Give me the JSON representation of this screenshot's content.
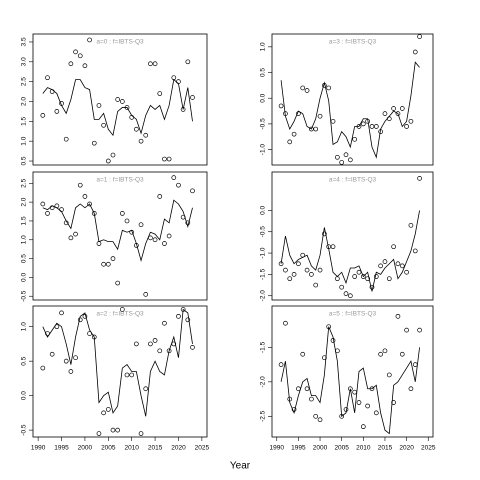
{
  "xlabel": "Year",
  "chart_data": [
    {
      "type": "line",
      "title": "a=0 : f=IBTS-Q3",
      "x": [
        1991,
        1992,
        1993,
        1994,
        1995,
        1996,
        1997,
        1998,
        1999,
        2000,
        2001,
        2002,
        2003,
        2004,
        2005,
        2006,
        2007,
        2008,
        2009,
        2010,
        2011,
        2012,
        2013,
        2014,
        2015,
        2016,
        2017,
        2018,
        2019,
        2020,
        2021,
        2022,
        2023
      ],
      "series": [
        {
          "style": "points",
          "color": "#000000",
          "values": [
            1.65,
            2.6,
            2.25,
            1.75,
            1.95,
            1.05,
            2.95,
            3.25,
            3.15,
            2.9,
            3.55,
            0.95,
            1.9,
            1.4,
            0.5,
            0.65,
            2.05,
            2.0,
            1.85,
            1.6,
            1.3,
            1.0,
            1.15,
            2.95,
            2.95,
            2.2,
            0.55,
            0.55,
            2.6,
            2.5,
            1.8,
            3.0,
            2.1
          ]
        },
        {
          "style": "line",
          "color": "#000000",
          "values": [
            2.2,
            2.35,
            2.3,
            2.2,
            1.9,
            1.7,
            2.05,
            2.55,
            2.55,
            2.35,
            2.3,
            1.55,
            1.55,
            1.7,
            1.3,
            1.15,
            1.75,
            1.85,
            1.85,
            1.65,
            1.55,
            1.2,
            1.65,
            1.9,
            1.8,
            1.9,
            1.55,
            1.9,
            2.55,
            2.45,
            1.8,
            2.35,
            1.5
          ]
        }
      ],
      "xlim": [
        1988.9,
        2026.1
      ],
      "ylim": [
        0.4,
        3.7
      ],
      "yticks": [
        {
          "value": 0.5,
          "label": "0.5"
        },
        {
          "value": 1,
          "label": "1.0"
        },
        {
          "value": 1.5,
          "label": "1.5"
        },
        {
          "value": 2,
          "label": "2.0"
        },
        {
          "value": 2.5,
          "label": "2.5"
        },
        {
          "value": 3,
          "label": "3.0"
        },
        {
          "value": 3.5,
          "label": "3.5"
        }
      ]
    },
    {
      "type": "line",
      "title": "a=1 : f=IBTS-Q3",
      "x": [
        1991,
        1992,
        1993,
        1994,
        1995,
        1996,
        1997,
        1998,
        1999,
        2000,
        2001,
        2002,
        2003,
        2004,
        2005,
        2006,
        2007,
        2008,
        2009,
        2010,
        2011,
        2012,
        2013,
        2014,
        2015,
        2016,
        2017,
        2018,
        2019,
        2020,
        2021,
        2022,
        2023
      ],
      "series": [
        {
          "style": "points",
          "color": "#000000",
          "values": [
            1.95,
            1.7,
            1.85,
            1.9,
            1.8,
            1.45,
            1.05,
            1.15,
            2.45,
            2.15,
            1.95,
            1.7,
            0.9,
            0.35,
            0.35,
            0.5,
            -0.15,
            1.7,
            1.5,
            1.2,
            0.85,
            1.4,
            -0.45,
            1.05,
            1.0,
            2.15,
            0.9,
            1.1,
            2.65,
            2.45,
            1.6,
            1.45,
            2.3
          ]
        },
        {
          "style": "line",
          "color": "#000000",
          "values": [
            1.85,
            1.8,
            1.9,
            1.85,
            1.75,
            1.5,
            1.3,
            1.85,
            1.95,
            1.85,
            1.95,
            1.7,
            0.95,
            1.0,
            0.95,
            0.95,
            0.75,
            1.25,
            1.2,
            1.25,
            0.9,
            0.45,
            0.9,
            1.2,
            1.15,
            1.0,
            1.55,
            1.45,
            2.05,
            1.95,
            1.75,
            1.35,
            1.85
          ]
        }
      ],
      "xlim": [
        1988.9,
        2026.1
      ],
      "ylim": [
        -0.6,
        2.8
      ],
      "yticks": [
        -0.5,
        {
          "value": 0,
          "label": "0.0"
        },
        {
          "value": 0.5,
          "label": "0.5"
        },
        {
          "value": 1,
          "label": "1.0"
        },
        {
          "value": 1.5,
          "label": "1.5"
        },
        {
          "value": 2,
          "label": "2.0"
        },
        {
          "value": 2.5,
          "label": "2.5"
        }
      ]
    },
    {
      "type": "line",
      "title": "a=2 : f=IBTS-Q3",
      "x": [
        1991,
        1992,
        1993,
        1994,
        1995,
        1996,
        1997,
        1998,
        1999,
        2000,
        2001,
        2002,
        2003,
        2004,
        2005,
        2006,
        2007,
        2008,
        2009,
        2010,
        2011,
        2012,
        2013,
        2014,
        2015,
        2016,
        2017,
        2018,
        2019,
        2020,
        2021,
        2022,
        2023
      ],
      "series": [
        {
          "style": "points",
          "color": "#000000",
          "values": [
            0.4,
            0.9,
            0.6,
            1.0,
            1.2,
            0.5,
            0.35,
            0.55,
            1.1,
            1.15,
            0.9,
            0.85,
            -0.55,
            -0.25,
            -0.2,
            -0.5,
            -0.5,
            1.25,
            0.3,
            0.3,
            0.75,
            -0.55,
            0.1,
            0.75,
            0.8,
            0.65,
            1.05,
            0.65,
            0.75,
            1.15,
            1.25,
            1.1,
            0.7
          ]
        },
        {
          "style": "line",
          "color": "#000000",
          "values": [
            1.0,
            0.85,
            0.95,
            1.05,
            1.0,
            0.75,
            0.45,
            0.85,
            1.15,
            1.2,
            0.95,
            0.85,
            -0.1,
            0.0,
            0.05,
            -0.25,
            -0.15,
            0.4,
            0.45,
            0.35,
            0.35,
            0.0,
            -0.3,
            0.35,
            0.5,
            0.35,
            0.3,
            0.65,
            0.85,
            0.55,
            1.25,
            1.2,
            0.75
          ]
        }
      ],
      "xlim": [
        1988.9,
        2026.1
      ],
      "ylim": [
        -0.6,
        1.3
      ],
      "yticks": [
        -0.5,
        {
          "value": 0,
          "label": "0.0"
        },
        {
          "value": 0.5,
          "label": "0.5"
        },
        {
          "value": 1,
          "label": "1.0"
        }
      ],
      "xticks": [
        1990,
        1995,
        2000,
        2005,
        2010,
        2015,
        2020,
        2025
      ]
    },
    {
      "type": "line",
      "title": "a=3 : f=IBTS-Q3",
      "x": [
        1991,
        1992,
        1993,
        1994,
        1995,
        1996,
        1997,
        1998,
        1999,
        2000,
        2001,
        2002,
        2003,
        2004,
        2005,
        2006,
        2007,
        2008,
        2009,
        2010,
        2011,
        2012,
        2013,
        2014,
        2015,
        2016,
        2017,
        2018,
        2019,
        2020,
        2021,
        2022,
        2023
      ],
      "series": [
        {
          "style": "points",
          "color": "#000000",
          "values": [
            -0.15,
            -0.3,
            -0.85,
            -0.7,
            -0.3,
            0.2,
            0.15,
            -0.6,
            -0.6,
            -0.35,
            0.25,
            0.2,
            -0.45,
            -1.15,
            -1.25,
            -1.1,
            -1.2,
            -0.8,
            -0.55,
            -0.5,
            -0.45,
            -0.55,
            -0.55,
            -0.65,
            -0.3,
            -0.4,
            -0.2,
            -0.3,
            -0.2,
            -0.55,
            -0.45,
            0.9,
            1.2
          ]
        },
        {
          "style": "line",
          "color": "#000000",
          "values": [
            0.35,
            -0.35,
            -0.6,
            -0.45,
            -0.25,
            -0.3,
            -0.55,
            -0.6,
            -0.4,
            0.0,
            0.3,
            -0.05,
            -0.9,
            -0.85,
            -0.65,
            -0.75,
            -0.95,
            -0.55,
            -0.55,
            -0.4,
            -0.4,
            -0.95,
            -1.15,
            -0.6,
            -0.45,
            -0.35,
            -0.25,
            -0.3,
            -0.55,
            -0.45,
            0.05,
            0.7,
            0.6
          ]
        }
      ],
      "xlim": [
        1988.9,
        2026.1
      ],
      "ylim": [
        -1.3,
        1.25
      ],
      "yticks": [
        {
          "value": -1,
          "label": "-1.0"
        },
        -0.5,
        {
          "value": 0,
          "label": "0.0"
        },
        {
          "value": 0.5,
          "label": "0.5"
        },
        {
          "value": 1,
          "label": "1.0"
        }
      ]
    },
    {
      "type": "line",
      "title": "a=4 : f=IBTS-Q3",
      "x": [
        1991,
        1992,
        1993,
        1994,
        1995,
        1996,
        1997,
        1998,
        1999,
        2000,
        2001,
        2002,
        2003,
        2004,
        2005,
        2006,
        2007,
        2008,
        2009,
        2010,
        2011,
        2012,
        2013,
        2014,
        2015,
        2016,
        2017,
        2018,
        2019,
        2020,
        2021,
        2022,
        2023
      ],
      "series": [
        {
          "style": "points",
          "color": "#000000",
          "values": [
            -1.25,
            -1.4,
            -1.6,
            -1.5,
            -1.25,
            -1.05,
            -1.4,
            -1.5,
            -1.75,
            -1.4,
            -0.55,
            -0.85,
            -0.85,
            -1.6,
            -1.8,
            -1.95,
            -2.0,
            -1.55,
            -1.45,
            -1.55,
            -1.6,
            -1.8,
            -1.55,
            -1.3,
            -1.2,
            -1.6,
            -0.85,
            -1.25,
            -1.3,
            -1.45,
            -0.35,
            -0.95,
            0.75
          ]
        },
        {
          "style": "line",
          "color": "#000000",
          "values": [
            -1.25,
            -0.6,
            -1.05,
            -1.25,
            -1.15,
            -1.1,
            -1.05,
            -1.3,
            -1.4,
            -1.05,
            -0.4,
            -0.9,
            -1.45,
            -1.55,
            -1.45,
            -1.7,
            -1.35,
            -1.35,
            -1.3,
            -1.55,
            -1.45,
            -1.9,
            -1.45,
            -1.5,
            -1.35,
            -1.25,
            -1.15,
            -1.6,
            -1.45,
            -1.2,
            -0.95,
            -0.55,
            0.0
          ]
        }
      ],
      "xlim": [
        1988.9,
        2026.1
      ],
      "ylim": [
        -2.1,
        0.9
      ],
      "yticks": [
        {
          "value": -2,
          "label": "-2.0"
        },
        -1.5,
        {
          "value": -1,
          "label": "-1.0"
        },
        -0.5,
        {
          "value": 0,
          "label": "0.0"
        }
      ]
    },
    {
      "type": "line",
      "title": "a=5 : f=IBTS-Q3",
      "x": [
        1991,
        1992,
        1993,
        1994,
        1995,
        1996,
        1997,
        1998,
        1999,
        2000,
        2001,
        2002,
        2003,
        2004,
        2005,
        2006,
        2007,
        2008,
        2009,
        2010,
        2011,
        2012,
        2013,
        2014,
        2015,
        2016,
        2017,
        2018,
        2019,
        2020,
        2021,
        2022,
        2023
      ],
      "series": [
        {
          "style": "points",
          "color": "#000000",
          "values": [
            -1.75,
            -1.15,
            -2.25,
            -2.4,
            -2.1,
            -1.6,
            -2.1,
            -2.25,
            -2.5,
            -2.55,
            -1.65,
            -1.2,
            -1.4,
            -1.55,
            -2.5,
            -2.4,
            -2.1,
            -2.15,
            -2.3,
            -2.65,
            -2.35,
            -2.1,
            -2.45,
            -1.6,
            -1.55,
            -1.9,
            -2.3,
            -1.05,
            -1.6,
            -1.25,
            -2.1,
            -1.75,
            -1.25
          ]
        },
        {
          "style": "line",
          "color": "#000000",
          "values": [
            -2.0,
            -1.7,
            -2.3,
            -2.45,
            -2.2,
            -2.0,
            -1.95,
            -2.2,
            -2.2,
            -2.3,
            -1.9,
            -1.2,
            -1.35,
            -1.7,
            -2.5,
            -2.45,
            -2.1,
            -2.45,
            -1.85,
            -1.8,
            -2.1,
            -2.1,
            -2.05,
            -2.45,
            -2.7,
            -2.75,
            -2.05,
            -2.0,
            -1.9,
            -1.8,
            -1.7,
            -2.0,
            -1.5
          ]
        }
      ],
      "xlim": [
        1988.9,
        2026.1
      ],
      "ylim": [
        -2.8,
        -0.9
      ],
      "yticks": [
        -2.5,
        {
          "value": -2,
          "label": "-2.0"
        },
        -1.5
      ],
      "xticks": [
        1990,
        1995,
        2000,
        2005,
        2010,
        2015,
        2020,
        2025
      ]
    }
  ]
}
